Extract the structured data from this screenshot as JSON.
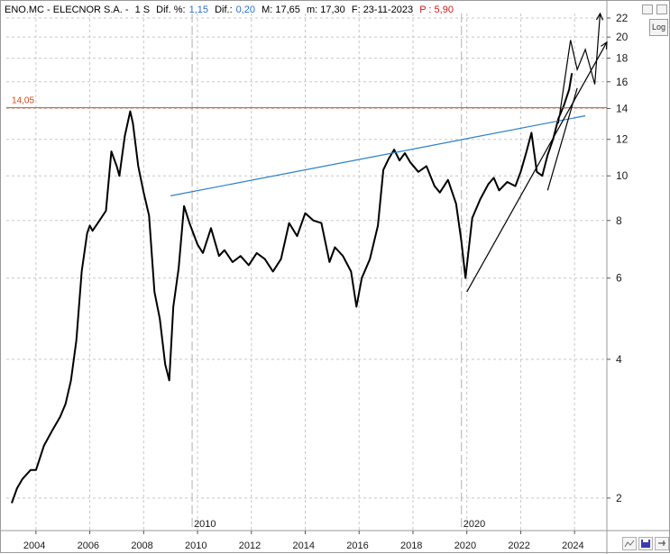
{
  "header": {
    "symbol": "ENO.MC - ELECNOR S.A. -",
    "period": "1 S",
    "dif_pct_label": "Dif. %:",
    "dif_pct_value": "1,15",
    "dif_label": "Dif.:",
    "dif_value": "0,20",
    "max_label": "M: 17,65",
    "min_label": "m: 17,30",
    "date_label": "F: 23-11-2023",
    "pe_label": "P : 5,90"
  },
  "controls": {
    "log_label": "Log",
    "top_icon_left": "square-icon",
    "top_icon_right": "square-icon",
    "bottom_tools": [
      "crosshair-icon",
      "save-icon",
      "pin-icon"
    ]
  },
  "colors": {
    "price": "#000000",
    "resistance_line": "#d44a1a",
    "resistance_label": "#d44a1a",
    "channel_line": "#2a7fc9",
    "grid": "#c8c8c8",
    "trend": "#000000"
  },
  "chart_data": {
    "type": "line",
    "title": "",
    "xlabel": "",
    "ylabel": "",
    "scale": "log",
    "xlim": [
      2002.9,
      2025.2
    ],
    "ylim": [
      1.7,
      22.5
    ],
    "y_ticks": [
      2,
      4,
      6,
      8,
      10,
      12,
      14,
      16,
      18,
      20,
      22
    ],
    "x_ticks": [
      2004,
      2006,
      2008,
      2010,
      2012,
      2014,
      2016,
      2018,
      2020,
      2022,
      2024
    ],
    "x_markers": [
      {
        "x": 2009.8,
        "label": "2010"
      },
      {
        "x": 2019.8,
        "label": "2020"
      }
    ],
    "grid": true,
    "series": [
      {
        "x": [
          2003.1,
          2003.3,
          2003.5,
          2003.8,
          2004.0,
          2004.3,
          2004.6,
          2004.9,
          2005.1,
          2005.3,
          2005.5,
          2005.7,
          2005.9,
          2006.0,
          2006.1,
          2006.3,
          2006.6,
          2006.8,
          2007.0,
          2007.1,
          2007.3,
          2007.5,
          2007.6,
          2007.8,
          2008.0,
          2008.2,
          2008.4,
          2008.6,
          2008.8,
          2008.95,
          2009.1,
          2009.3,
          2009.5,
          2009.7,
          2010.0,
          2010.2,
          2010.5,
          2010.8,
          2011.0,
          2011.3,
          2011.6,
          2011.9,
          2012.2,
          2012.5,
          2012.8,
          2013.1,
          2013.4,
          2013.7,
          2014.0,
          2014.3,
          2014.6,
          2014.9,
          2015.1,
          2015.4,
          2015.7,
          2015.9,
          2016.1,
          2016.4,
          2016.7,
          2016.9,
          2017.1,
          2017.3,
          2017.5,
          2017.7,
          2017.9,
          2018.2,
          2018.5,
          2018.8,
          2019.0,
          2019.3,
          2019.6,
          2019.8,
          2019.95,
          2020.2,
          2020.5,
          2020.8,
          2021.0,
          2021.2,
          2021.5,
          2021.8,
          2022.0,
          2022.2,
          2022.4,
          2022.6,
          2022.8,
          2023.0,
          2023.2,
          2023.4,
          2023.6,
          2023.8,
          2023.9
        ],
        "y": [
          1.95,
          2.1,
          2.2,
          2.3,
          2.3,
          2.6,
          2.8,
          3.0,
          3.2,
          3.6,
          4.4,
          6.2,
          7.5,
          7.8,
          7.6,
          7.9,
          8.4,
          11.3,
          10.5,
          10.0,
          12.2,
          13.8,
          13.0,
          10.5,
          9.2,
          8.2,
          5.6,
          4.9,
          3.9,
          3.6,
          5.2,
          6.3,
          8.6,
          7.9,
          7.1,
          6.8,
          7.7,
          6.7,
          6.9,
          6.5,
          6.7,
          6.4,
          6.8,
          6.6,
          6.2,
          6.6,
          7.9,
          7.4,
          8.3,
          8.0,
          7.9,
          6.5,
          7.0,
          6.7,
          6.2,
          5.2,
          6.0,
          6.6,
          7.8,
          10.3,
          10.9,
          11.4,
          10.8,
          11.2,
          10.7,
          10.2,
          10.5,
          9.5,
          9.2,
          9.8,
          8.7,
          7.2,
          6.0,
          8.1,
          8.9,
          9.6,
          9.9,
          9.3,
          9.7,
          9.5,
          10.2,
          11.2,
          12.4,
          10.2,
          10.0,
          11.1,
          12.0,
          13.3,
          14.2,
          15.4,
          16.7
        ]
      }
    ],
    "annotations": [
      {
        "type": "hline",
        "y": 14.05,
        "label": "14,05"
      },
      {
        "type": "line",
        "x1": 2009.0,
        "y1": 9.05,
        "x2": 2024.4,
        "y2": 13.5
      },
      {
        "type": "line",
        "x1": 2020.0,
        "y1": 5.6,
        "x2": 2025.2,
        "y2": 19.5
      },
      {
        "type": "line",
        "x1": 2023.0,
        "y1": 9.3,
        "x2": 2024.1,
        "y2": 15.5
      },
      {
        "type": "polyline",
        "x": [
          2023.4,
          2023.85,
          2024.1,
          2024.4,
          2024.75,
          2024.95
        ],
        "y": [
          13.0,
          19.7,
          17.0,
          18.8,
          15.8,
          22.5
        ]
      }
    ]
  }
}
